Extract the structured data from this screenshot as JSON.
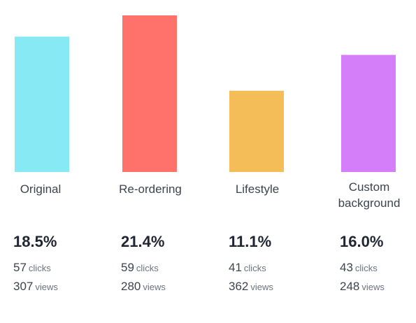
{
  "chart_data": {
    "type": "bar",
    "categories": [
      "Original",
      "Re-ordering",
      "Lifestyle",
      "Custom background"
    ],
    "values": [
      18.5,
      21.4,
      11.1,
      16.0
    ],
    "value_labels": [
      "18.5%",
      "21.4%",
      "11.1%",
      "16.0%"
    ],
    "clicks": [
      "57",
      "59",
      "41",
      "43"
    ],
    "views": [
      "307",
      "280",
      "362",
      "248"
    ],
    "clicks_unit": "clicks",
    "views_unit": "views",
    "colors": [
      "#86e9f4",
      "#ff726c",
      "#f4bd58",
      "#d57ef9"
    ],
    "ylim": [
      0,
      21.4
    ],
    "grid": false,
    "legend": "none"
  }
}
